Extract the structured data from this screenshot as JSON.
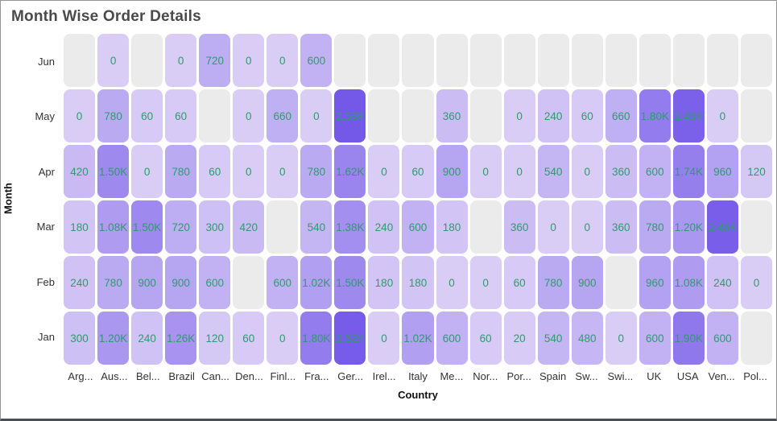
{
  "chart_data": {
    "type": "heatmap",
    "title": "Month Wise Order Details",
    "xlabel": "Country",
    "ylabel": "Month",
    "x_categories": [
      "Arg...",
      "Aus...",
      "Bel...",
      "Brazil",
      "Can...",
      "Den...",
      "Finl...",
      "Fra...",
      "Ger...",
      "Irel...",
      "Italy",
      "Me...",
      "Nor...",
      "Por...",
      "Spain",
      "Sw...",
      "Swi...",
      "UK",
      "USA",
      "Ven...",
      "Pol..."
    ],
    "y_categories": [
      "Jun",
      "May",
      "Apr",
      "Mar",
      "Feb",
      "Jan"
    ],
    "rows": [
      {
        "month": "Jun",
        "labels": [
          null,
          "0",
          null,
          "0",
          "720",
          "0",
          "0",
          "600",
          null,
          null,
          null,
          null,
          null,
          null,
          null,
          null,
          null,
          null,
          null,
          null,
          null
        ],
        "values": [
          null,
          0,
          null,
          0,
          720,
          0,
          0,
          600,
          null,
          null,
          null,
          null,
          null,
          null,
          null,
          null,
          null,
          null,
          null,
          null,
          null
        ]
      },
      {
        "month": "May",
        "labels": [
          "0",
          "780",
          "60",
          "60",
          null,
          "0",
          "660",
          "0",
          "2.58K",
          null,
          null,
          "360",
          null,
          "0",
          "240",
          "60",
          "660",
          "1.80K",
          "2.40K",
          "0",
          null
        ],
        "values": [
          0,
          780,
          60,
          60,
          null,
          0,
          660,
          0,
          2580,
          null,
          null,
          360,
          null,
          0,
          240,
          60,
          660,
          1800,
          2400,
          0,
          null
        ]
      },
      {
        "month": "Apr",
        "labels": [
          "420",
          "1.50K",
          "0",
          "780",
          "60",
          "0",
          "0",
          "780",
          "1.62K",
          "0",
          "60",
          "900",
          "0",
          "0",
          "540",
          "0",
          "360",
          "600",
          "1.74K",
          "960",
          "120"
        ],
        "values": [
          420,
          1500,
          0,
          780,
          60,
          0,
          0,
          780,
          1620,
          0,
          60,
          900,
          0,
          0,
          540,
          0,
          360,
          600,
          1740,
          960,
          120
        ]
      },
      {
        "month": "Mar",
        "labels": [
          "180",
          "1.08K",
          "1.50K",
          "720",
          "300",
          "420",
          null,
          "540",
          "1.38K",
          "240",
          "600",
          "180",
          null,
          "360",
          "0",
          "0",
          "360",
          "780",
          "1.20K",
          "2.46K",
          null
        ],
        "values": [
          180,
          1080,
          1500,
          720,
          300,
          420,
          null,
          540,
          1380,
          240,
          600,
          180,
          null,
          360,
          0,
          0,
          360,
          780,
          1200,
          2460,
          null
        ]
      },
      {
        "month": "Feb",
        "labels": [
          "240",
          "780",
          "900",
          "900",
          "600",
          null,
          "600",
          "1.02K",
          "1.50K",
          "180",
          "180",
          "0",
          "0",
          "60",
          "780",
          "900",
          null,
          "960",
          "1.08K",
          "240",
          "0"
        ],
        "values": [
          240,
          780,
          900,
          900,
          600,
          null,
          600,
          1020,
          1500,
          180,
          180,
          0,
          0,
          60,
          780,
          900,
          null,
          960,
          1080,
          240,
          0
        ]
      },
      {
        "month": "Jan",
        "labels": [
          "300",
          "1.20K",
          "240",
          "1.26K",
          "120",
          "60",
          "0",
          "1.80K",
          "2.52K",
          "0",
          "1.02K",
          "600",
          "60",
          "20",
          "540",
          "480",
          "0",
          "600",
          "1.90K",
          "600",
          null
        ],
        "values": [
          300,
          1200,
          240,
          1260,
          120,
          60,
          0,
          1800,
          2520,
          0,
          1020,
          600,
          60,
          20,
          540,
          480,
          0,
          600,
          1900,
          600,
          null
        ]
      }
    ],
    "value_range": [
      0,
      2580
    ],
    "colors": {
      "min_color": "#D9CDF6",
      "max_color": "#7459E9",
      "empty_color": "#EBEBEB",
      "label_color": "#2E9B6E",
      "title_color": "#4A4A4A",
      "axis_text_color": "#333333"
    },
    "legend_position": "none",
    "grid": false
  }
}
